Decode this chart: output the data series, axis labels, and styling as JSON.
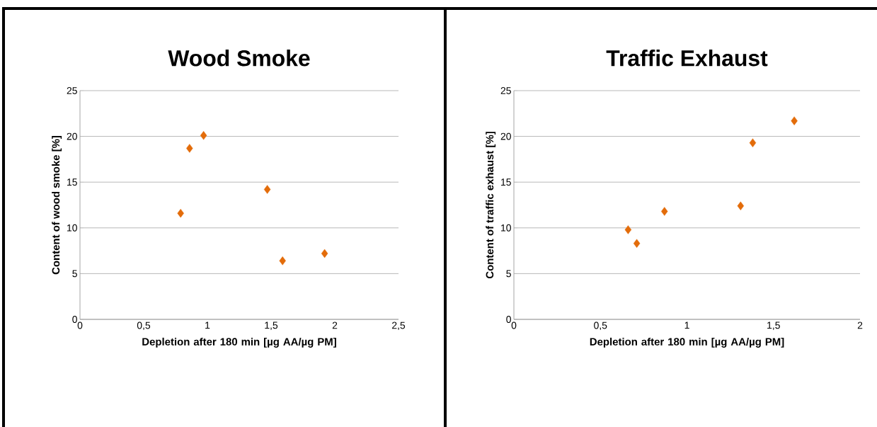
{
  "chart_data": [
    {
      "type": "scatter",
      "title": "Wood Smoke",
      "xlabel": "Depletion after 180 min [µg AA/µg PM]",
      "ylabel": "Content of wood smoke [%]",
      "x": [
        0.79,
        0.86,
        0.97,
        1.47,
        1.59,
        1.92
      ],
      "series": [
        {
          "color": "#e36c0a",
          "values": [
            11.6,
            18.7,
            20.1,
            14.2,
            6.4,
            7.2
          ]
        }
      ],
      "xlim": [
        0,
        2.5
      ],
      "ylim": [
        0,
        25
      ],
      "xticks": [
        0,
        {
          "value": 0.5,
          "label": "0,5"
        },
        1,
        {
          "value": 1.5,
          "label": "1,5"
        },
        2,
        {
          "value": 2.5,
          "label": "2,5"
        }
      ],
      "yticks": [
        0,
        5,
        10,
        15,
        20,
        25
      ],
      "grid": "y",
      "marker": "diamond"
    },
    {
      "type": "scatter",
      "title": "Traffic Exhaust",
      "xlabel": "Depletion after 180 min [µg AA/µg PM]",
      "ylabel": "Content of traffic exhaust [%]",
      "x": [
        0.66,
        0.71,
        0.87,
        1.31,
        1.38,
        1.62
      ],
      "series": [
        {
          "color": "#e36c0a",
          "values": [
            9.8,
            8.3,
            11.8,
            12.4,
            19.3,
            21.7
          ]
        }
      ],
      "xlim": [
        0,
        2
      ],
      "ylim": [
        0,
        25
      ],
      "xticks": [
        0,
        {
          "value": 0.5,
          "label": "0,5"
        },
        1,
        {
          "value": 1.5,
          "label": "1,5"
        },
        2
      ],
      "yticks": [
        0,
        5,
        10,
        15,
        20,
        25
      ],
      "grid": "y",
      "marker": "diamond"
    }
  ]
}
